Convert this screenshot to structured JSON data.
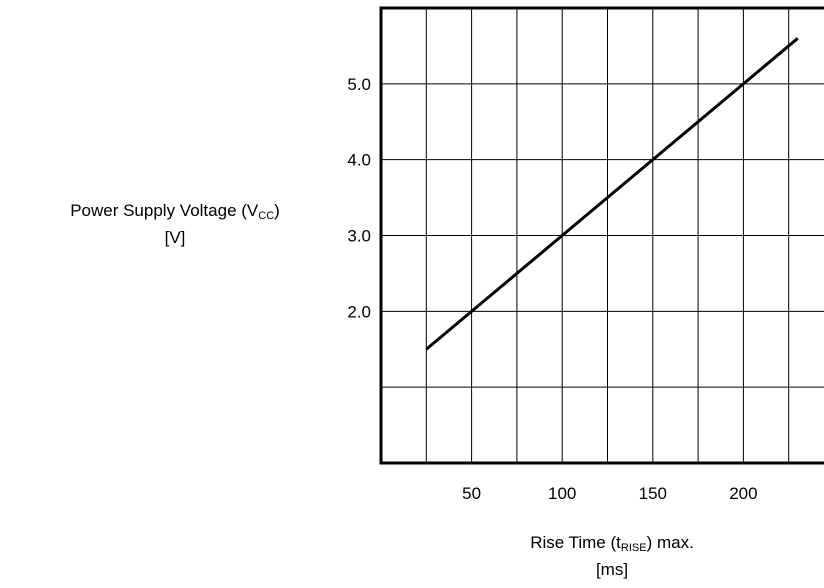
{
  "chart_data": {
    "type": "line",
    "xlabel": {
      "main_prefix": "Rise Time (t",
      "sub": "RISE",
      "main_suffix": ") max.",
      "unit": "[ms]"
    },
    "ylabel": {
      "main_prefix": "Power Supply Voltage (V",
      "sub": "CC",
      "main_suffix": ")",
      "unit": "[V]"
    },
    "x_ticks": [
      50,
      100,
      150,
      200
    ],
    "x_tick_labels": [
      "50",
      "100",
      "150",
      "200"
    ],
    "y_ticks": [
      2.0,
      3.0,
      4.0,
      5.0
    ],
    "y_tick_labels": [
      "2.0",
      "3.0",
      "4.0",
      "5.0"
    ],
    "xlim": [
      0,
      250
    ],
    "ylim": [
      0,
      6
    ],
    "grid": true,
    "line_color": "#000000",
    "series": [
      {
        "values_x": [
          25,
          230
        ],
        "values_y": [
          1.5,
          5.6
        ]
      }
    ]
  }
}
